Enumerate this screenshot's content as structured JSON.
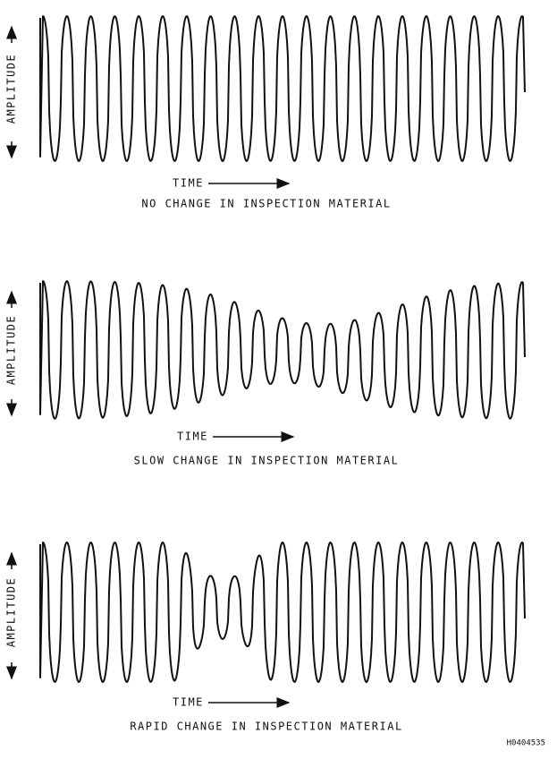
{
  "panels": [
    {
      "y_label": "AMPLITUDE",
      "x_label": "TIME",
      "caption": "NO CHANGE IN INSPECTION MATERIAL"
    },
    {
      "y_label": "AMPLITUDE",
      "x_label": "TIME",
      "caption": "SLOW CHANGE IN INSPECTION MATERIAL"
    },
    {
      "y_label": "AMPLITUDE",
      "x_label": "TIME",
      "caption": "RAPID CHANGE IN INSPECTION MATERIAL"
    }
  ],
  "figure_id": "H0404535"
}
